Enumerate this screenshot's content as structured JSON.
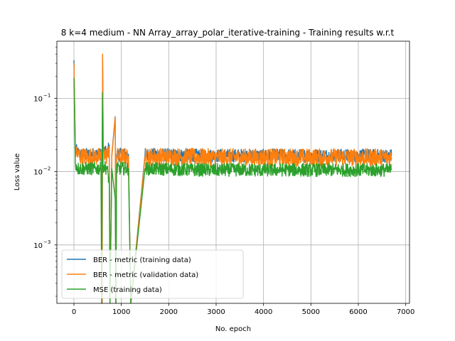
{
  "chart_data": {
    "type": "line",
    "title": "8 k=4 medium - NN Array_array_polar_iterative-training - Training results w.r.t",
    "xlabel": "No. epoch",
    "ylabel": "Loss value",
    "xlim": [
      -360,
      7080
    ],
    "ylim": [
      0.00016,
      0.6
    ],
    "yscale": "log",
    "grid": true,
    "legend_position": "lower-left",
    "x_ticks": [
      0,
      1000,
      2000,
      3000,
      4000,
      5000,
      6000,
      7000
    ],
    "x_tick_labels": [
      "0",
      "1000",
      "2000",
      "3000",
      "4000",
      "5000",
      "6000",
      "7000"
    ],
    "y_ticks": [
      0.001,
      0.01,
      0.1
    ],
    "y_tick_labels": [
      "10",
      "10",
      "10"
    ],
    "y_tick_exponents": [
      "−3",
      "−2",
      "−1"
    ],
    "series": [
      {
        "name": "BER - metric (training data)",
        "color": "#1f77b4",
        "x": [
          0,
          30,
          80,
          150,
          300,
          450,
          580,
          595,
          605,
          620,
          700,
          745,
          760,
          800,
          870,
          885,
          900,
          1000,
          1150,
          1200,
          1500,
          2000,
          2500,
          3000,
          3500,
          4000,
          4500,
          5000,
          5500,
          6000,
          6500,
          6700
        ],
        "y": [
          0.33,
          0.02,
          0.018,
          0.017,
          0.017,
          0.017,
          0.017,
          0.00016,
          0.38,
          0.02,
          0.017,
          0.023,
          0.00016,
          0.017,
          0.056,
          0.00016,
          0.017,
          0.017,
          0.017,
          0.00016,
          0.017,
          0.0168,
          0.0166,
          0.0165,
          0.0166,
          0.0165,
          0.0166,
          0.0165,
          0.0166,
          0.0165,
          0.0165,
          0.0165
        ],
        "noise": 0.09
      },
      {
        "name": "BER - metric (validation data)",
        "color": "#ff7f0e",
        "x": [
          0,
          30,
          80,
          150,
          300,
          450,
          580,
          595,
          605,
          620,
          700,
          745,
          760,
          800,
          870,
          885,
          900,
          1000,
          1150,
          1200,
          1500,
          2000,
          2500,
          3000,
          3500,
          4000,
          4500,
          5000,
          5500,
          6000,
          6500,
          6700
        ],
        "y": [
          0.3,
          0.02,
          0.017,
          0.016,
          0.016,
          0.016,
          0.016,
          0.00016,
          0.4,
          0.019,
          0.016,
          0.022,
          0.00016,
          0.016,
          0.055,
          0.00016,
          0.016,
          0.016,
          0.016,
          0.00016,
          0.016,
          0.016,
          0.0158,
          0.0156,
          0.0157,
          0.0156,
          0.0157,
          0.0156,
          0.0157,
          0.0156,
          0.0156,
          0.0156
        ],
        "noise": 0.12
      },
      {
        "name": "MSE (training data)",
        "color": "#2ca02c",
        "x": [
          0,
          30,
          80,
          150,
          300,
          450,
          570,
          585,
          600,
          615,
          700,
          745,
          760,
          800,
          870,
          885,
          900,
          1000,
          1150,
          1200,
          1500,
          2000,
          2500,
          3000,
          3500,
          4000,
          4500,
          5000,
          5500,
          6000,
          6500,
          6700
        ],
        "y": [
          0.19,
          0.013,
          0.011,
          0.011,
          0.011,
          0.011,
          0.011,
          0.00016,
          0.12,
          0.012,
          0.011,
          0.0072,
          0.00016,
          0.011,
          0.0043,
          0.00016,
          0.011,
          0.011,
          0.011,
          0.00016,
          0.011,
          0.0108,
          0.0106,
          0.0105,
          0.0106,
          0.0105,
          0.0106,
          0.0105,
          0.0106,
          0.0105,
          0.0105,
          0.0105
        ],
        "noise": 0.09
      }
    ]
  }
}
